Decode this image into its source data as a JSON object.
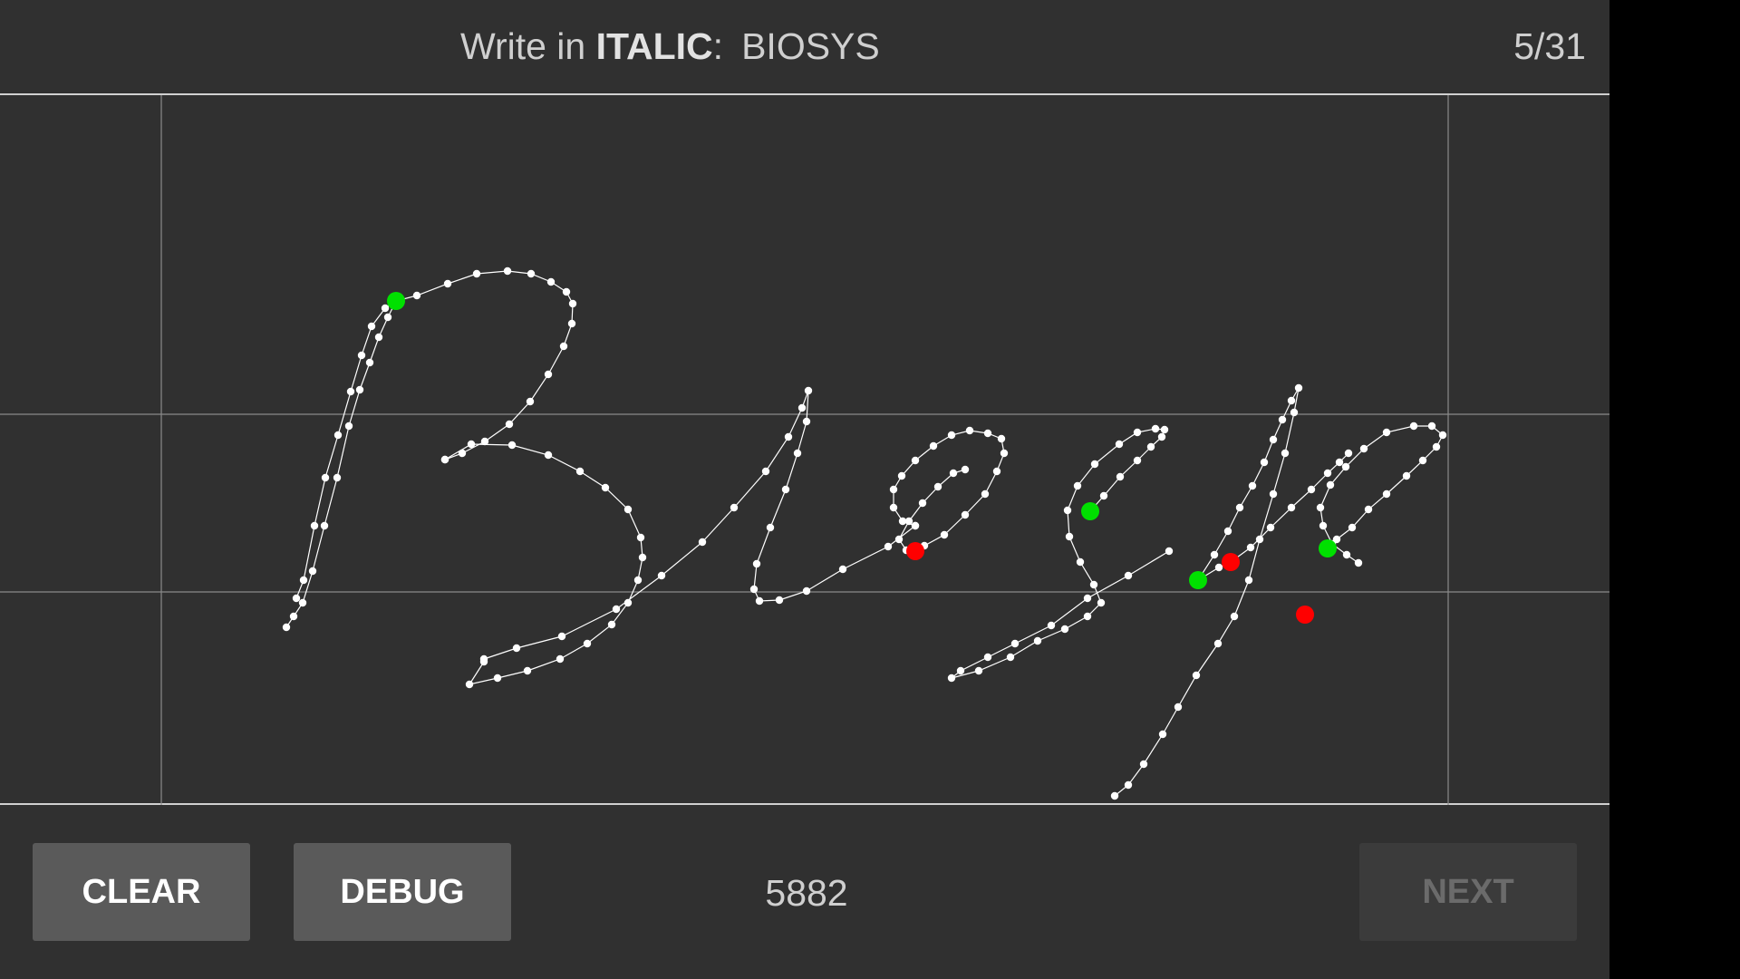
{
  "header": {
    "prompt_prefix": "Write in",
    "style_word": "ITALIC",
    "colon": ":",
    "target_word": "BIOSYS",
    "progress": "5/31"
  },
  "footer": {
    "clear_label": "CLEAR",
    "debug_label": "DEBUG",
    "counter": "5882",
    "next_label": "NEXT",
    "next_enabled": false
  },
  "colors": {
    "background": "#303030",
    "guide_line": "#8a8a8a",
    "stroke": "#ffffff",
    "stroke_start": "#00e000",
    "stroke_end": "#ff0000"
  }
}
